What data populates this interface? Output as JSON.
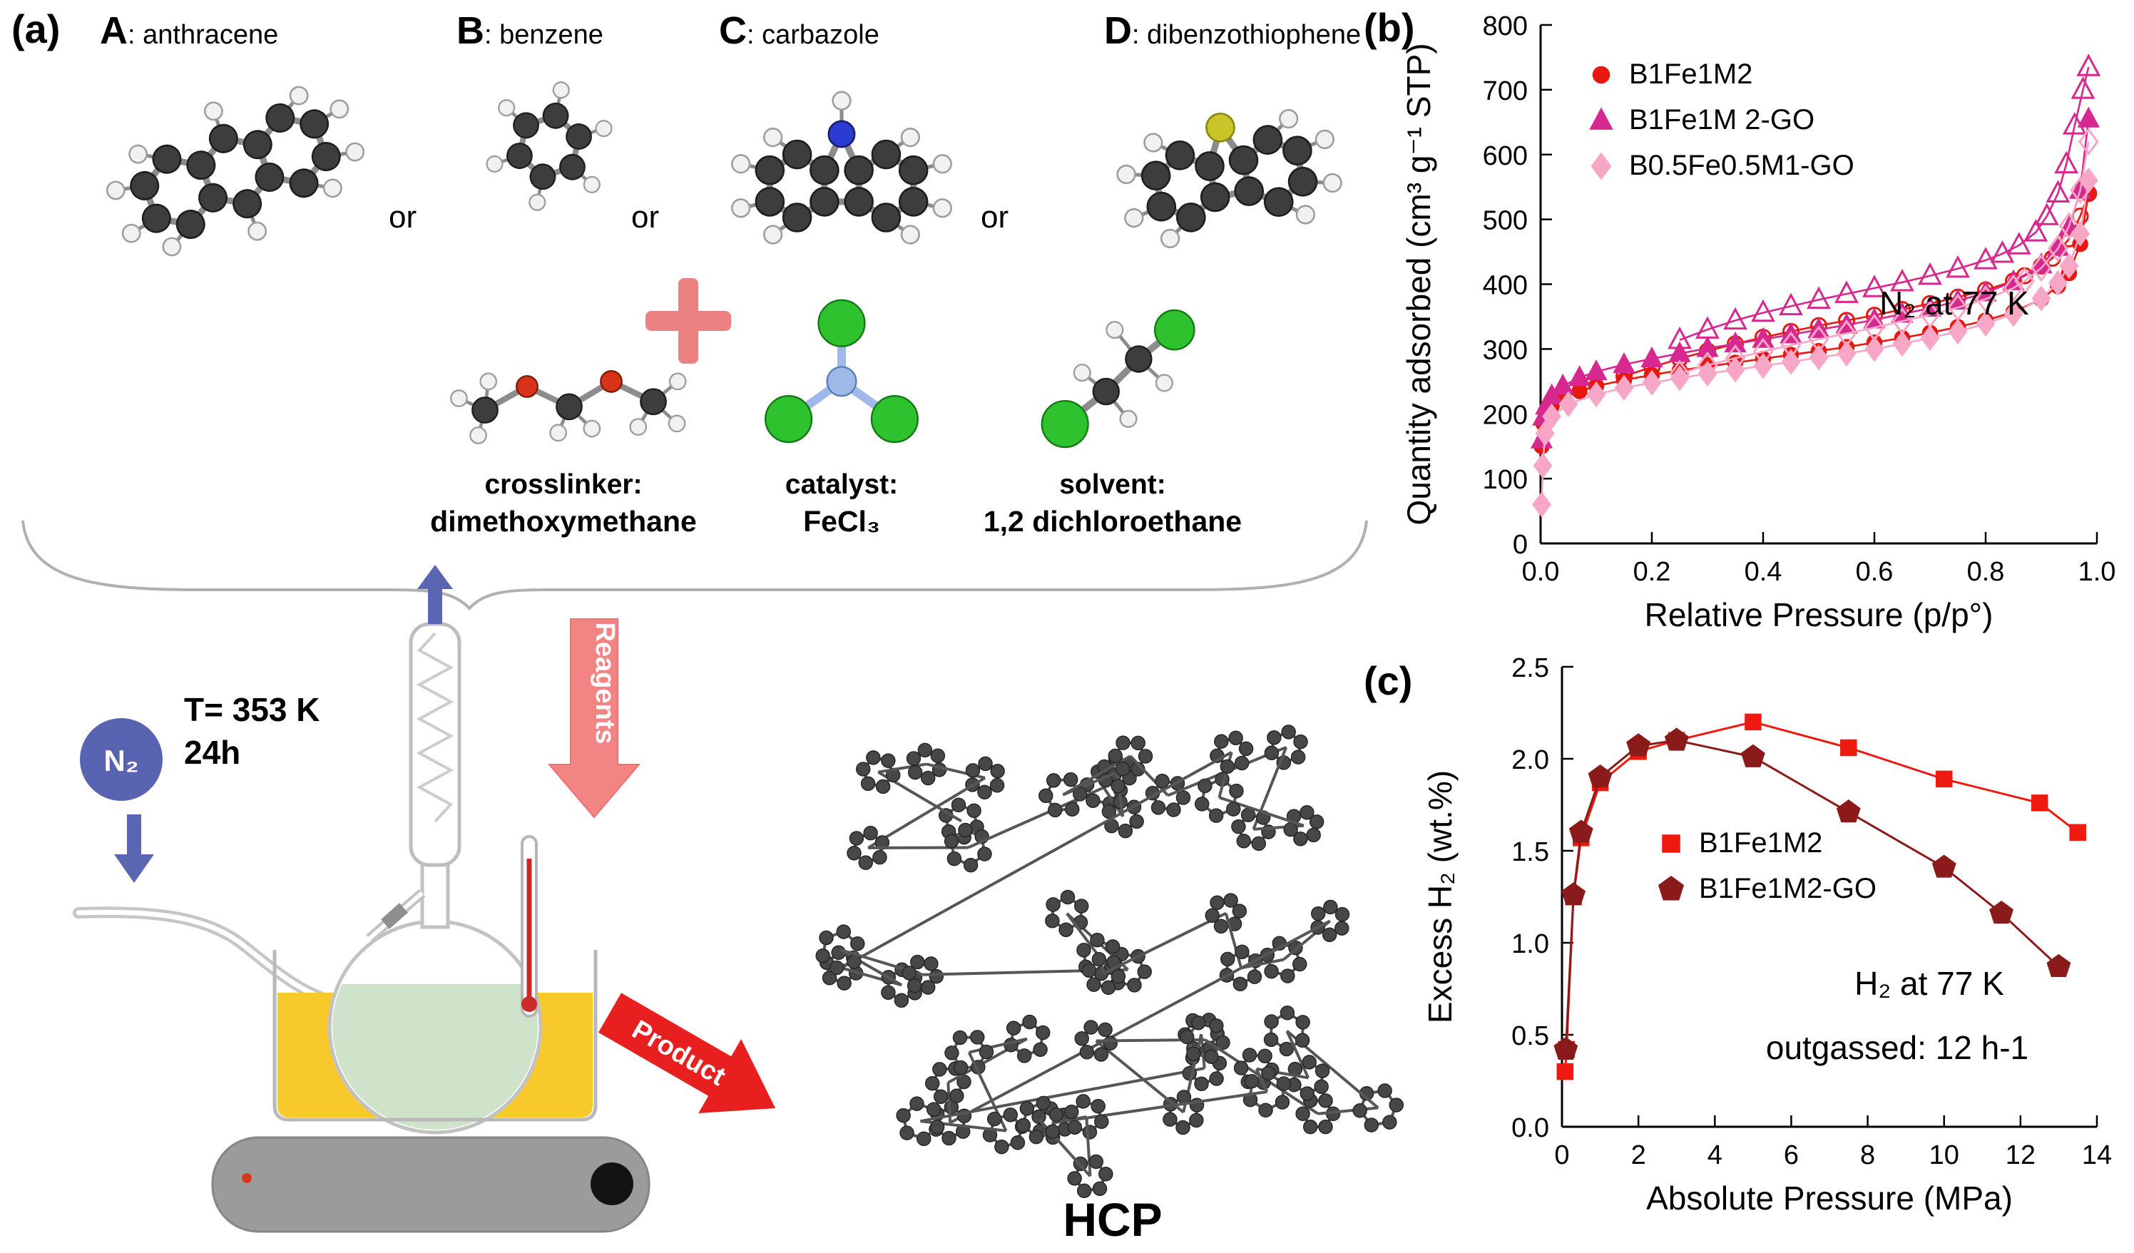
{
  "figure": {
    "panel_a": {
      "label": "(a)",
      "monomers": [
        {
          "letter": "A",
          "name": ": anthracene"
        },
        {
          "letter": "B",
          "name": ": benzene"
        },
        {
          "letter": "C",
          "name": ": carbazole"
        },
        {
          "letter": "D",
          "name": ": dibenzothiophene"
        }
      ],
      "or_label": "or",
      "reagents": [
        {
          "role": "crosslinker:",
          "name": "dimethoxymethane"
        },
        {
          "role": "catalyst:",
          "name": "FeCl₃"
        },
        {
          "role": "solvent:",
          "name": "1,2 dichloroethane"
        }
      ],
      "conditions": {
        "temperature": "T= 353 K",
        "duration": "24h",
        "atmosphere": "N₂"
      },
      "arrows": {
        "reagents": "Reagents",
        "product": "Product"
      },
      "product_label": "HCP",
      "colors": {
        "plus": "#ec8181",
        "reagents_arrow": "#f38484",
        "product_arrow": "#e81f1f",
        "n2_ball": "#5864b2"
      }
    }
  },
  "chart_data": [
    {
      "id": "panel_b",
      "panel_label": "(b)",
      "type": "line",
      "title": "",
      "xlabel": "Relative Pressure (p/p°)",
      "ylabel": "Quantity adsorbed (cm³ g⁻¹ STP)",
      "xlim": [
        0,
        1.0
      ],
      "ylim": [
        0,
        800
      ],
      "xticks": [
        0.0,
        0.2,
        0.4,
        0.6,
        0.8,
        1.0
      ],
      "xtick_labels": [
        "0.0",
        "0.2",
        "0.4",
        "0.6",
        "0.8",
        "1.0"
      ],
      "yticks": [
        0,
        100,
        200,
        300,
        400,
        500,
        600,
        700,
        800
      ],
      "ytick_labels": [
        "0",
        "100",
        "200",
        "300",
        "400",
        "500",
        "600",
        "700",
        "800"
      ],
      "grid": false,
      "legend_position": "top-left",
      "annotations": [
        {
          "text": "N₂ at 77 K"
        }
      ],
      "series": [
        {
          "name": "B1Fe1M2",
          "marker": "circle",
          "color": "#e8170f",
          "filled": true,
          "legend": true,
          "points": [
            [
              0.002,
              150
            ],
            [
              0.005,
              185
            ],
            [
              0.01,
              200
            ],
            [
              0.02,
              212
            ],
            [
              0.04,
              224
            ],
            [
              0.07,
              235
            ],
            [
              0.1,
              243
            ],
            [
              0.15,
              252
            ],
            [
              0.2,
              260
            ],
            [
              0.25,
              267
            ],
            [
              0.3,
              273
            ],
            [
              0.35,
              279
            ],
            [
              0.4,
              285
            ],
            [
              0.45,
              291
            ],
            [
              0.5,
              297
            ],
            [
              0.55,
              303
            ],
            [
              0.6,
              310
            ],
            [
              0.65,
              317
            ],
            [
              0.7,
              325
            ],
            [
              0.75,
              334
            ],
            [
              0.8,
              344
            ],
            [
              0.85,
              357
            ],
            [
              0.9,
              377
            ],
            [
              0.93,
              397
            ],
            [
              0.95,
              417
            ],
            [
              0.97,
              462
            ],
            [
              0.985,
              540
            ]
          ]
        },
        {
          "name": "B1Fe1M2 desorption",
          "marker": "circle",
          "color": "#e8170f",
          "filled": false,
          "legend": false,
          "points": [
            [
              0.985,
              540
            ],
            [
              0.97,
              505
            ],
            [
              0.95,
              470
            ],
            [
              0.92,
              440
            ],
            [
              0.9,
              428
            ],
            [
              0.87,
              413
            ],
            [
              0.85,
              405
            ],
            [
              0.8,
              391
            ],
            [
              0.75,
              380
            ],
            [
              0.7,
              370
            ],
            [
              0.65,
              361
            ],
            [
              0.6,
              352
            ],
            [
              0.55,
              344
            ],
            [
              0.5,
              336
            ],
            [
              0.45,
              327
            ],
            [
              0.4,
              318
            ],
            [
              0.35,
              308
            ],
            [
              0.3,
              297
            ],
            [
              0.25,
              285
            ],
            [
              0.2,
              272
            ],
            [
              0.15,
              258
            ]
          ]
        },
        {
          "name": "B1Fe1M 2-GO",
          "marker": "triangle",
          "color": "#d6288e",
          "filled": true,
          "legend": true,
          "points": [
            [
              0.002,
              160
            ],
            [
              0.005,
              195
            ],
            [
              0.01,
              212
            ],
            [
              0.02,
              228
            ],
            [
              0.04,
              243
            ],
            [
              0.07,
              256
            ],
            [
              0.1,
              265
            ],
            [
              0.15,
              276
            ],
            [
              0.2,
              285
            ],
            [
              0.25,
              293
            ],
            [
              0.3,
              301
            ],
            [
              0.35,
              308
            ],
            [
              0.4,
              315
            ],
            [
              0.45,
              322
            ],
            [
              0.5,
              330
            ],
            [
              0.55,
              337
            ],
            [
              0.6,
              345
            ],
            [
              0.65,
              354
            ],
            [
              0.7,
              363
            ],
            [
              0.75,
              374
            ],
            [
              0.8,
              387
            ],
            [
              0.85,
              404
            ],
            [
              0.9,
              430
            ],
            [
              0.93,
              457
            ],
            [
              0.95,
              487
            ],
            [
              0.97,
              545
            ],
            [
              0.985,
              655
            ]
          ]
        },
        {
          "name": "B1Fe1M 2-GO desorption",
          "marker": "triangle",
          "color": "#d6288e",
          "filled": false,
          "legend": false,
          "points": [
            [
              0.985,
              735
            ],
            [
              0.975,
              700
            ],
            [
              0.96,
              645
            ],
            [
              0.945,
              585
            ],
            [
              0.93,
              540
            ],
            [
              0.91,
              505
            ],
            [
              0.89,
              480
            ],
            [
              0.86,
              460
            ],
            [
              0.83,
              447
            ],
            [
              0.8,
              437
            ],
            [
              0.75,
              424
            ],
            [
              0.7,
              413
            ],
            [
              0.65,
              403
            ],
            [
              0.6,
              394
            ],
            [
              0.55,
              385
            ],
            [
              0.5,
              376
            ],
            [
              0.45,
              366
            ],
            [
              0.4,
              356
            ],
            [
              0.35,
              344
            ],
            [
              0.3,
              330
            ],
            [
              0.25,
              314
            ]
          ]
        },
        {
          "name": "B0.5Fe0.5M1-GO",
          "marker": "diamond",
          "color": "#f7a6c6",
          "filled": true,
          "legend": true,
          "points": [
            [
              0.002,
              60
            ],
            [
              0.004,
              120
            ],
            [
              0.008,
              170
            ],
            [
              0.02,
              196
            ],
            [
              0.05,
              215
            ],
            [
              0.1,
              230
            ],
            [
              0.15,
              240
            ],
            [
              0.2,
              248
            ],
            [
              0.25,
              255
            ],
            [
              0.3,
              262
            ],
            [
              0.35,
              268
            ],
            [
              0.4,
              274
            ],
            [
              0.45,
              280
            ],
            [
              0.5,
              287
            ],
            [
              0.55,
              293
            ],
            [
              0.6,
              300
            ],
            [
              0.65,
              308
            ],
            [
              0.7,
              317
            ],
            [
              0.75,
              327
            ],
            [
              0.8,
              339
            ],
            [
              0.85,
              354
            ],
            [
              0.9,
              378
            ],
            [
              0.93,
              402
            ],
            [
              0.95,
              428
            ],
            [
              0.97,
              478
            ],
            [
              0.985,
              560
            ]
          ]
        },
        {
          "name": "B0.5Fe0.5M1-GO desorption",
          "marker": "diamond",
          "color": "#f7a6c6",
          "filled": false,
          "legend": false,
          "points": [
            [
              0.985,
              620
            ],
            [
              0.97,
              545
            ],
            [
              0.95,
              490
            ],
            [
              0.93,
              455
            ],
            [
              0.9,
              425
            ],
            [
              0.87,
              405
            ],
            [
              0.85,
              394
            ],
            [
              0.8,
              377
            ],
            [
              0.75,
              364
            ],
            [
              0.7,
              353
            ],
            [
              0.65,
              343
            ],
            [
              0.6,
              333
            ],
            [
              0.55,
              324
            ],
            [
              0.5,
              315
            ],
            [
              0.45,
              306
            ],
            [
              0.4,
              296
            ],
            [
              0.35,
              286
            ],
            [
              0.3,
              275
            ],
            [
              0.25,
              262
            ]
          ]
        }
      ]
    },
    {
      "id": "panel_c",
      "panel_label": "(c)",
      "type": "line",
      "title": "",
      "xlabel": "Absolute Pressure (MPa)",
      "ylabel": "Excess H₂ (wt.%)",
      "xlim": [
        0,
        14
      ],
      "ylim": [
        0,
        2.5
      ],
      "xticks": [
        0,
        2,
        4,
        6,
        8,
        10,
        12,
        14
      ],
      "xtick_labels": [
        "0",
        "2",
        "4",
        "6",
        "8",
        "10",
        "12",
        "14"
      ],
      "yticks": [
        0.0,
        0.5,
        1.0,
        1.5,
        2.0,
        2.5
      ],
      "ytick_labels": [
        "0.0",
        "0.5",
        "1.0",
        "1.5",
        "2.0",
        "2.5"
      ],
      "grid": false,
      "legend_position": "center-left",
      "annotations": [
        {
          "text": "H₂ at 77 K"
        },
        {
          "text": "outgassed: 12 h-1"
        }
      ],
      "series": [
        {
          "name": "B1Fe1M2",
          "marker": "square",
          "color": "#ed1a10",
          "filled": true,
          "legend": true,
          "points": [
            [
              0.08,
              0.3
            ],
            [
              0.12,
              0.42
            ],
            [
              0.3,
              1.25
            ],
            [
              0.5,
              1.57
            ],
            [
              1.0,
              1.87
            ],
            [
              2.0,
              2.04
            ],
            [
              3.0,
              2.1
            ],
            [
              5.0,
              2.2
            ],
            [
              7.5,
              2.06
            ],
            [
              10.0,
              1.89
            ],
            [
              12.5,
              1.76
            ],
            [
              13.5,
              1.6
            ]
          ]
        },
        {
          "name": "B1Fe1M2-GO",
          "marker": "pentagon",
          "color": "#8b1a1a",
          "filled": true,
          "legend": true,
          "points": [
            [
              0.1,
              0.42
            ],
            [
              0.3,
              1.26
            ],
            [
              0.5,
              1.6
            ],
            [
              1.0,
              1.9
            ],
            [
              2.0,
              2.07
            ],
            [
              3.0,
              2.1
            ],
            [
              5.0,
              2.01
            ],
            [
              7.5,
              1.71
            ],
            [
              10.0,
              1.41
            ],
            [
              11.5,
              1.16
            ],
            [
              13.0,
              0.87
            ]
          ]
        }
      ]
    }
  ]
}
